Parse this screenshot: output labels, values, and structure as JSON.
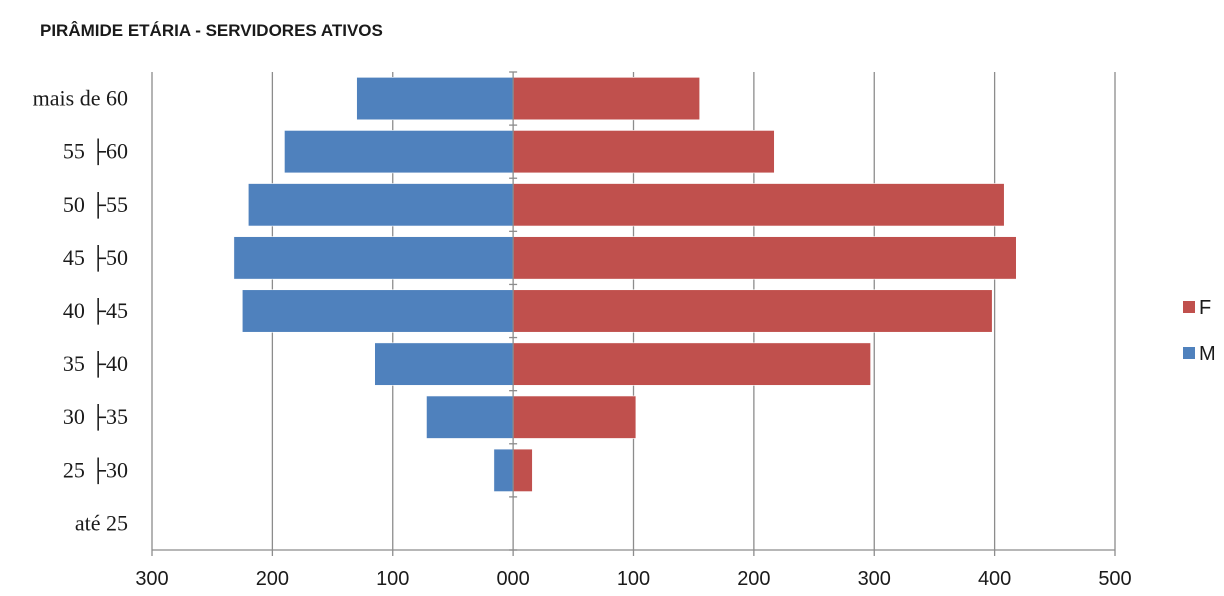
{
  "chart_data": {
    "type": "bar",
    "orientation": "horizontal",
    "title": "PIRÂMIDE ETÁRIA - SERVIDORES ATIVOS",
    "categories": [
      "mais de 60",
      "55 ├60",
      "50 ├55",
      "45 ├50",
      "40 ├45",
      "35 ├40",
      "30 ├35",
      "25 ├30",
      "até 25"
    ],
    "series": [
      {
        "name": "F",
        "color": "#c0504d",
        "values": [
          155,
          217,
          408,
          418,
          398,
          297,
          102,
          16,
          0
        ]
      },
      {
        "name": "M",
        "color": "#4f81bd",
        "values": [
          -130,
          -190,
          -220,
          -232,
          -225,
          -115,
          -72,
          -16,
          0
        ]
      }
    ],
    "x_ticks": [
      -300,
      -200,
      -100,
      0,
      100,
      200,
      300,
      400,
      500
    ],
    "x_tick_labels": [
      "300",
      "200",
      "100",
      "000",
      "100",
      "200",
      "300",
      "400",
      "500"
    ],
    "xlim": [
      -300,
      500
    ],
    "grid": "vertical",
    "legend": "right"
  }
}
